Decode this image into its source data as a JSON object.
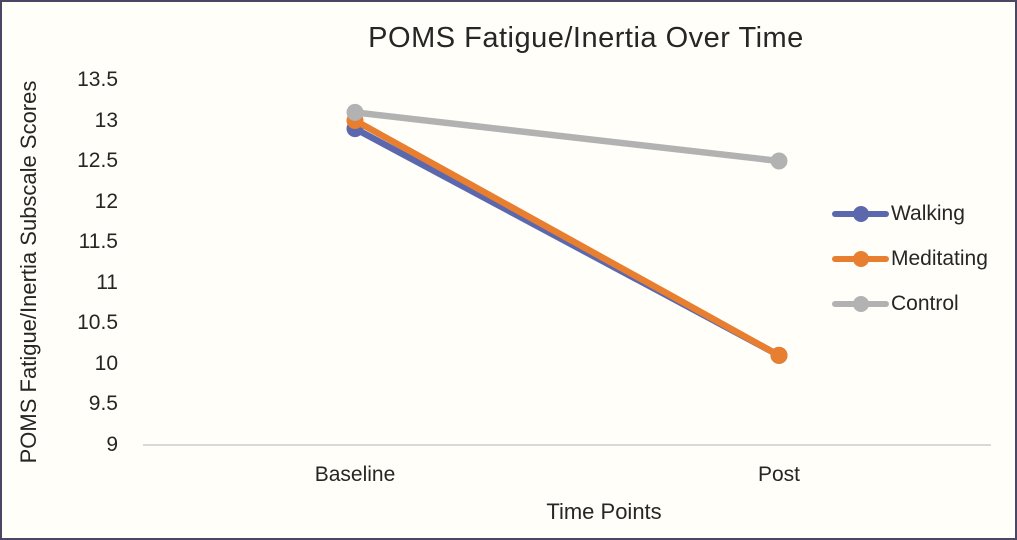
{
  "frame": {
    "background": "#FFFEF8",
    "border_color": "#4C4565",
    "text_color": "#262626",
    "axis_line_color": "#D9D9D9"
  },
  "chart_data": {
    "type": "line",
    "title": "POMS Fatigue/Inertia Over Time",
    "xlabel": "Time Points",
    "ylabel": "POMS Fatigue/Inertia Subscale Scores",
    "categories": [
      "Baseline",
      "Post"
    ],
    "series": [
      {
        "name": "Walking",
        "values": [
          12.9,
          10.1
        ],
        "color": "#5B68AD"
      },
      {
        "name": "Meditating",
        "values": [
          13.0,
          10.1
        ],
        "color": "#E87E2F"
      },
      {
        "name": "Control",
        "values": [
          13.1,
          12.5
        ],
        "color": "#B2B2B2"
      }
    ],
    "ylim": [
      9,
      13.5
    ],
    "yticks": [
      13.5,
      13,
      12.5,
      12,
      11.5,
      11,
      10.5,
      10,
      9.5,
      9
    ],
    "grid": false,
    "legend_position": "right",
    "marker": "circle"
  }
}
